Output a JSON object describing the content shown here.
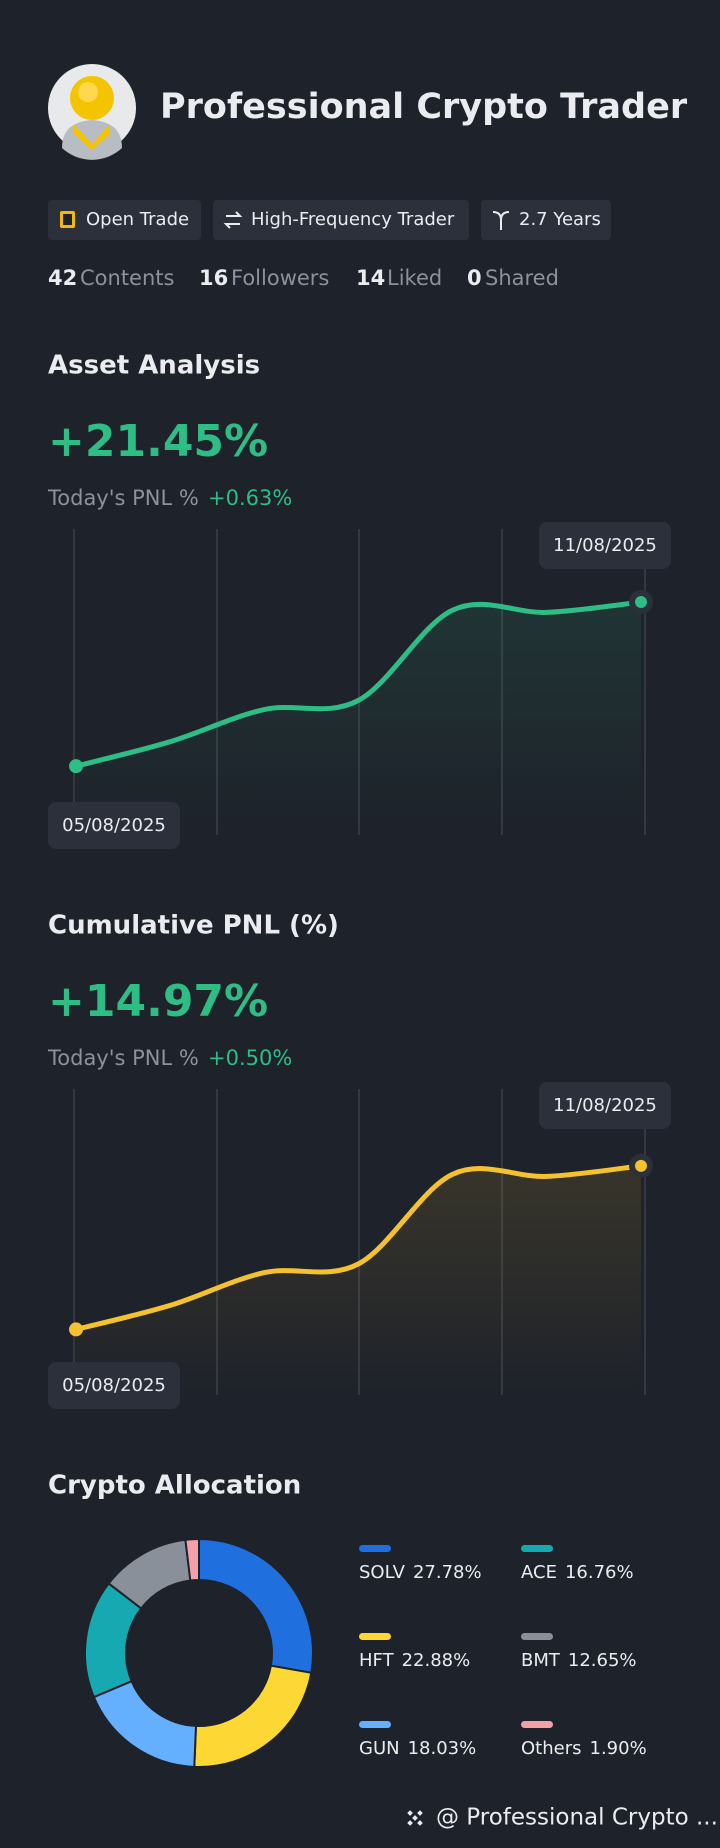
{
  "profile": {
    "name": "Professional Crypto Trader",
    "tags": [
      "Open Trade",
      "High-Frequency Trader",
      "2.7 Years"
    ],
    "stats": [
      {
        "count": 42,
        "label": "Contents"
      },
      {
        "count": 16,
        "label": "Followers"
      },
      {
        "count": 14,
        "label": "Liked"
      },
      {
        "count": 0,
        "label": "Shared"
      }
    ]
  },
  "chart_data": [
    {
      "type": "line",
      "title": "Asset Analysis",
      "headline": "+21.45%",
      "subtitle": "Today's PNL %",
      "subtitle_value": "+0.63%",
      "categories": [
        "05/08/2025",
        null,
        null,
        null,
        null,
        null,
        "11/08/2025"
      ],
      "values": [
        0,
        3.2,
        7.4,
        8.6,
        20.4,
        20.1,
        21.45
      ],
      "color": "#2ebd85",
      "ylim": [
        -9,
        31
      ]
    },
    {
      "type": "line",
      "title": "Cumulative PNL (%)",
      "headline": "+14.97%",
      "subtitle": "Today's PNL %",
      "subtitle_value": "+0.50%",
      "categories": [
        "05/08/2025",
        null,
        null,
        null,
        null,
        null,
        "11/08/2025"
      ],
      "values": [
        0,
        2.2,
        5.2,
        6.0,
        14.2,
        14.0,
        14.97
      ],
      "color": "#f5c12e",
      "ylim": [
        -6,
        22
      ]
    },
    {
      "type": "pie",
      "title": "Crypto Allocation",
      "categories": [
        "SOLV",
        "HFT",
        "GUN",
        "ACE",
        "BMT",
        "Others"
      ],
      "values": [
        27.78,
        22.88,
        18.03,
        16.76,
        12.65,
        1.9
      ],
      "value_labels": [
        "27.78%",
        "22.88%",
        "18.03%",
        "16.76%",
        "12.65%",
        "1.90%"
      ],
      "colors": [
        "#1f6fde",
        "#fdd835",
        "#64b0ff",
        "#17a9b1",
        "#8a9099",
        "#f4a0a8"
      ]
    }
  ],
  "footer": "@ Professional Crypto ..."
}
